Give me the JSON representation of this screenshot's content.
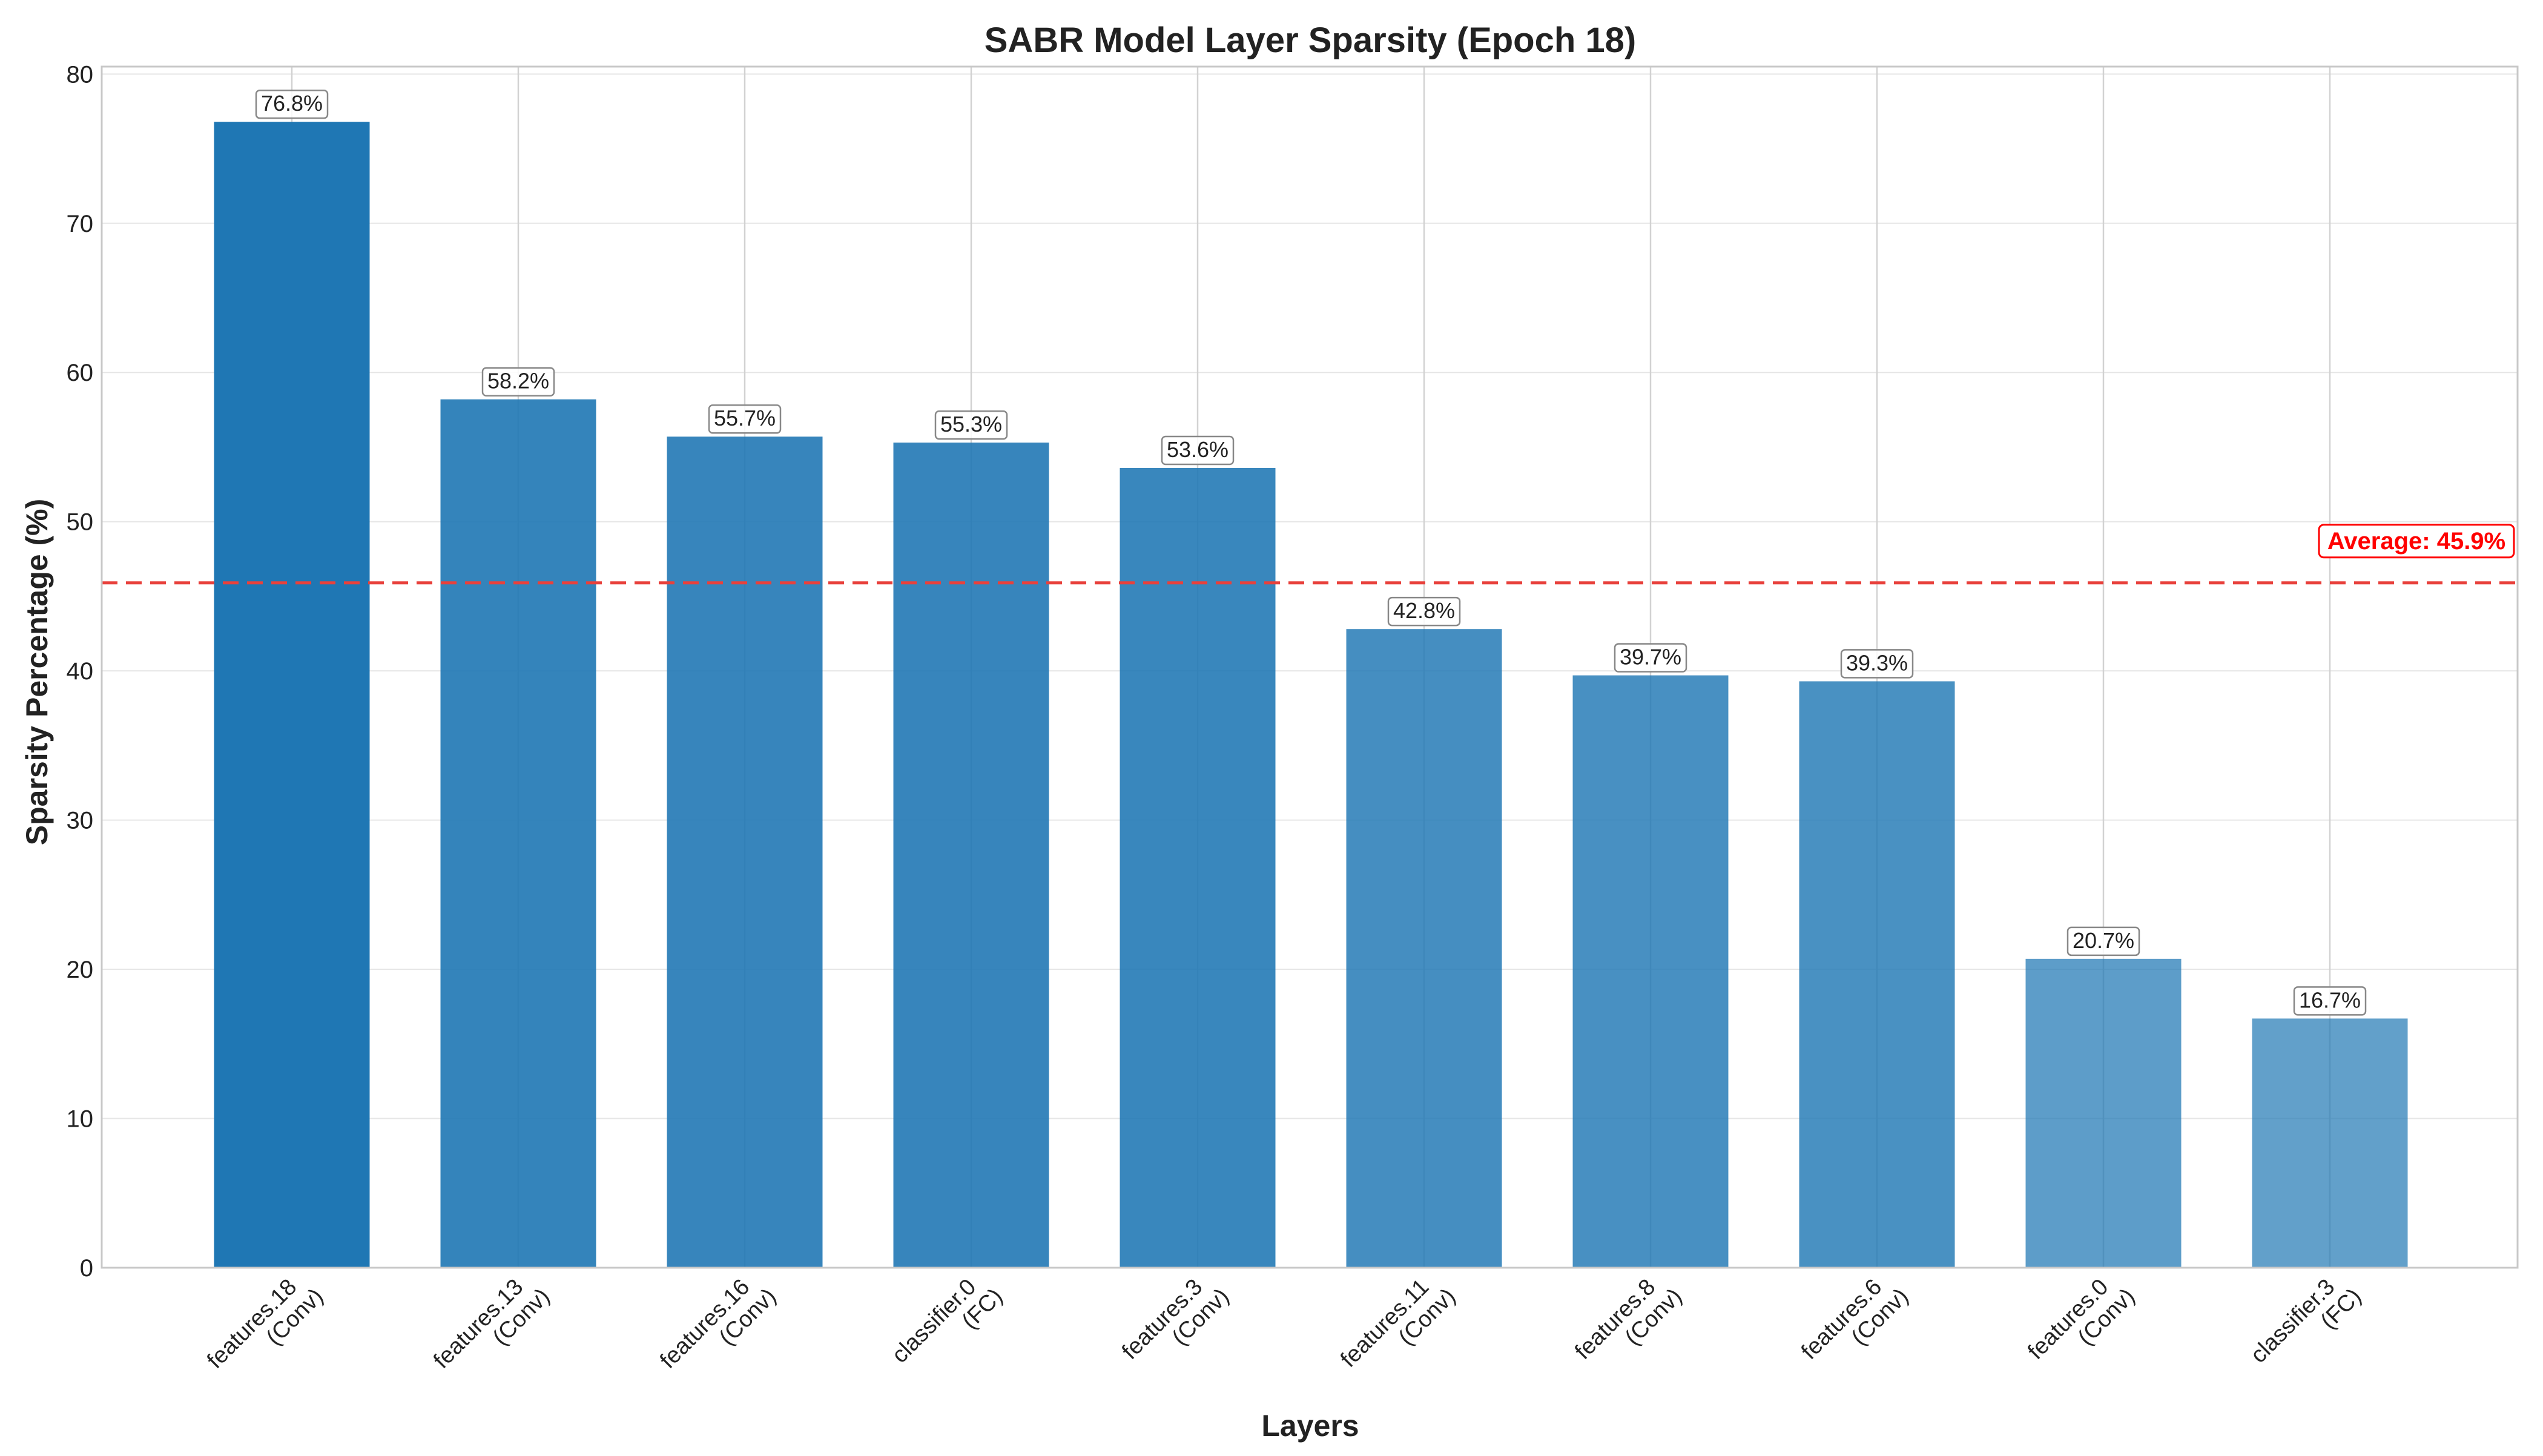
{
  "chart_data": {
    "type": "bar",
    "title": "SABR Model Layer Sparsity (Epoch 18)",
    "xlabel": "Layers",
    "ylabel": "Sparsity Percentage (%)",
    "ylim": [
      0,
      80.5
    ],
    "yticks": [
      "0",
      "10",
      "20",
      "30",
      "40",
      "50",
      "60",
      "70",
      "80"
    ],
    "categories": [
      {
        "name": "features.18",
        "type": "(Conv)"
      },
      {
        "name": "features.13",
        "type": "(Conv)"
      },
      {
        "name": "features.16",
        "type": "(Conv)"
      },
      {
        "name": "classifier.0",
        "type": "(FC)"
      },
      {
        "name": "features.3",
        "type": "(Conv)"
      },
      {
        "name": "features.11",
        "type": "(Conv)"
      },
      {
        "name": "features.8",
        "type": "(Conv)"
      },
      {
        "name": "features.6",
        "type": "(Conv)"
      },
      {
        "name": "features.0",
        "type": "(Conv)"
      },
      {
        "name": "classifier.3",
        "type": "(FC)"
      }
    ],
    "values": [
      76.8,
      58.2,
      55.7,
      55.3,
      53.6,
      42.8,
      39.7,
      39.3,
      20.7,
      16.7
    ],
    "value_labels": [
      "76.8%",
      "58.2%",
      "55.7%",
      "55.3%",
      "53.6%",
      "42.8%",
      "39.7%",
      "39.3%",
      "20.7%",
      "16.7%"
    ],
    "average": 45.9,
    "average_label": "Average: 45.9%",
    "grid": true,
    "colors": {
      "bar": "#1f77b4",
      "average_line": "#e8413c",
      "average_text": "#ff0000",
      "grid": "#e6e6e6",
      "frame": "#c8c8c8"
    }
  }
}
